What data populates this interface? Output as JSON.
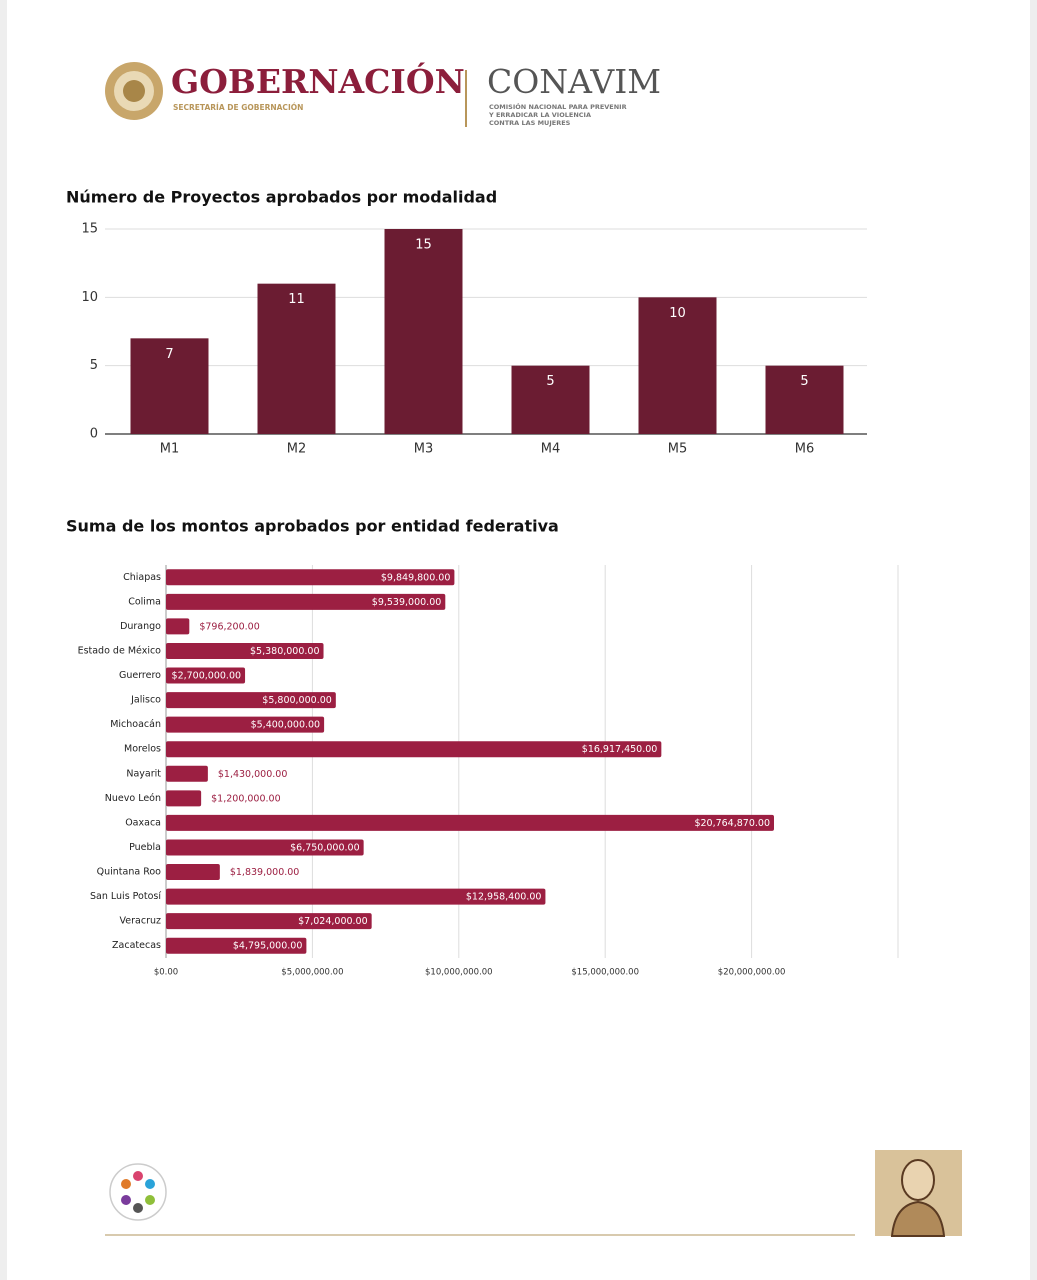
{
  "header": {
    "ministry": "GOBERNACIÓN",
    "ministry_sub": "SECRETARÍA DE GOBERNACIÓN",
    "agency": "CONAVIM",
    "agency_sub": [
      "COMISIÓN NACIONAL PARA PREVENIR",
      "Y ERRADICAR LA VIOLENCIA",
      "CONTRA LAS MUJERES"
    ]
  },
  "chart_data": [
    {
      "type": "bar",
      "title": "Número de Proyectos aprobados por modalidad",
      "categories": [
        "M1",
        "M2",
        "M3",
        "M4",
        "M5",
        "M6"
      ],
      "values": [
        7,
        11,
        15,
        5,
        10,
        5
      ],
      "color": "#6b1c32",
      "ylim": [
        0,
        15
      ],
      "yticks": [
        0,
        5,
        10,
        15
      ],
      "grid": true
    },
    {
      "type": "barh",
      "title": "Suma de los montos aprobados por entidad federativa",
      "categories": [
        "Chiapas",
        "Colima",
        "Durango",
        "Estado de México",
        "Guerrero",
        "Jalisco",
        "Michoacán",
        "Morelos",
        "Nayarit",
        "Nuevo León",
        "Oaxaca",
        "Puebla",
        "Quintana Roo",
        "San Luis Potosí",
        "Veracruz",
        "Zacatecas"
      ],
      "values": [
        9849800,
        9539000,
        796200,
        5380000,
        2700000,
        5800000,
        5400000,
        16917450,
        1430000,
        1200000,
        20764870,
        6750000,
        1839000,
        12958400,
        7024000,
        4795000
      ],
      "value_labels": [
        "$9,849,800.00",
        "$9,539,000.00",
        "$796,200.00",
        "$5,380,000.00",
        "$2,700,000.00",
        "$5,800,000.00",
        "$5,400,000.00",
        "$16,917,450.00",
        "$1,430,000.00",
        "$1,200,000.00",
        "$20,764,870.00",
        "$6,750,000.00",
        "$1,839,000.00",
        "$12,958,400.00",
        "$7,024,000.00",
        "$4,795,000.00"
      ],
      "color": "#9c1f42",
      "xlim": [
        0,
        25000000
      ],
      "xticks": [
        {
          "value": 0,
          "label": "$0.00"
        },
        {
          "value": 5000000,
          "label": "$5,000,000.00"
        },
        {
          "value": 10000000,
          "label": "$10,000,000.00"
        },
        {
          "value": 15000000,
          "label": "$15,000,000.00"
        },
        {
          "value": 20000000,
          "label": "$20,000,000.00"
        }
      ],
      "grid": true
    }
  ]
}
